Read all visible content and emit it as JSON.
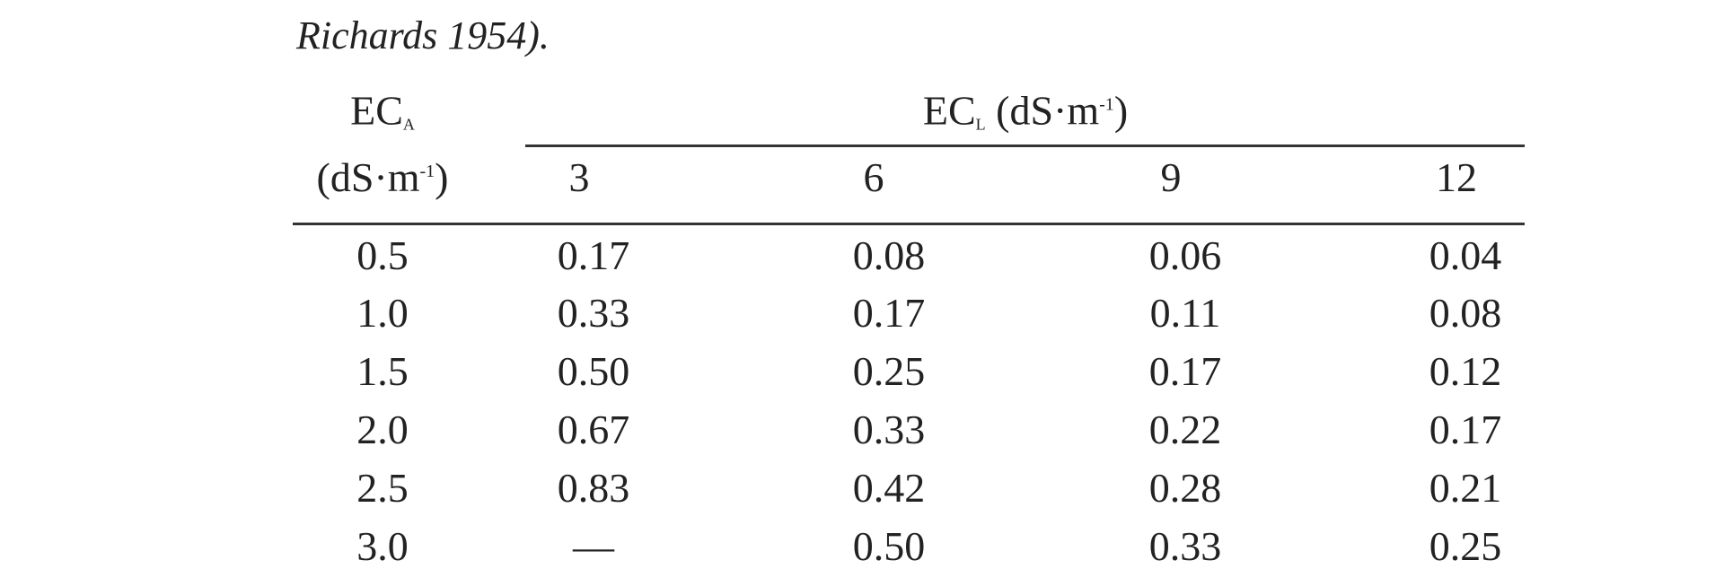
{
  "caption": "Richards 1954).",
  "table": {
    "row_header": {
      "symbol": "EC",
      "subscript": "A",
      "unit_open": "(dS·m",
      "unit_sup": "-1",
      "unit_close": ")"
    },
    "col_group_header": {
      "symbol": "EC",
      "subscript": "L",
      "unit_open": " (dS·m",
      "unit_sup": "-1",
      "unit_close": ")"
    },
    "columns": [
      "3",
      "6",
      "9",
      "12"
    ],
    "rows": [
      {
        "ec_a": "0.5",
        "values": [
          "0.17",
          "0.08",
          "0.06",
          "0.04"
        ]
      },
      {
        "ec_a": "1.0",
        "values": [
          "0.33",
          "0.17",
          "0.11",
          "0.08"
        ]
      },
      {
        "ec_a": "1.5",
        "values": [
          "0.50",
          "0.25",
          "0.17",
          "0.12"
        ]
      },
      {
        "ec_a": "2.0",
        "values": [
          "0.67",
          "0.33",
          "0.22",
          "0.17"
        ]
      },
      {
        "ec_a": "2.5",
        "values": [
          "0.83",
          "0.42",
          "0.28",
          "0.21"
        ]
      },
      {
        "ec_a": "3.0",
        "values": [
          "—",
          "0.50",
          "0.33",
          "0.25"
        ]
      }
    ]
  }
}
